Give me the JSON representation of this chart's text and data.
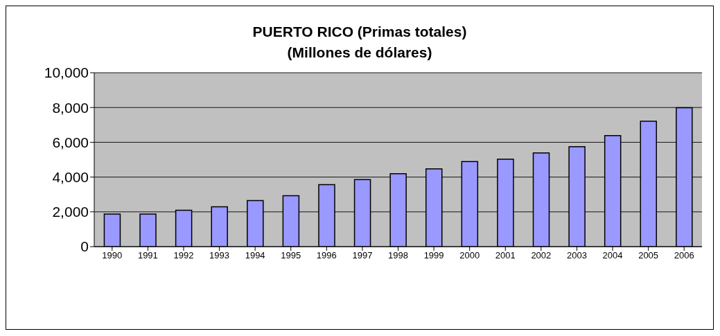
{
  "chart_data": {
    "type": "bar",
    "title": "PUERTO RICO (Primas totales)",
    "subtitle": "(Millones de dólares)",
    "categories": [
      "1990",
      "1991",
      "1992",
      "1993",
      "1994",
      "1995",
      "1996",
      "1997",
      "1998",
      "1999",
      "2000",
      "2001",
      "2002",
      "2003",
      "2004",
      "2005",
      "2006"
    ],
    "values": [
      1870,
      1870,
      2090,
      2290,
      2650,
      2930,
      3570,
      3850,
      4190,
      4470,
      4890,
      5030,
      5390,
      5750,
      6380,
      7210,
      7990
    ],
    "color": "#9999ff",
    "ylim": [
      0,
      10000
    ],
    "yticks": [
      {
        "value": 0,
        "label": "0"
      },
      {
        "value": 2000,
        "label": "2,000"
      },
      {
        "value": 4000,
        "label": "4,000"
      },
      {
        "value": 6000,
        "label": "6,000"
      },
      {
        "value": 8000,
        "label": "8,000"
      },
      {
        "value": 10000,
        "label": "10,000"
      }
    ],
    "grid": "y"
  }
}
